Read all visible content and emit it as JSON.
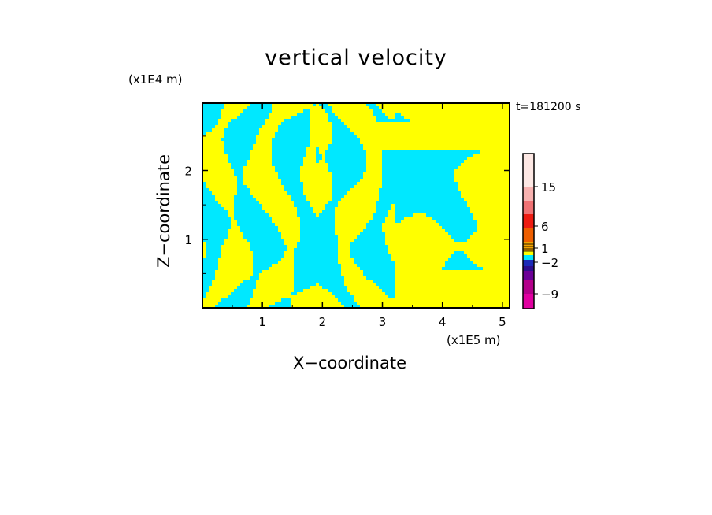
{
  "chart_data": {
    "type": "heatmap",
    "title": "vertical velocity",
    "xlabel": "X−coordinate",
    "ylabel": "Z−coordinate",
    "x_unit": "(x1E5 m)",
    "z_unit": "(x1E4 m)",
    "time_label": "t=181200 s",
    "x_ticks": [
      1,
      2,
      3,
      4,
      5
    ],
    "x_tick_labels": [
      "1",
      "2",
      "3",
      "4",
      "5"
    ],
    "z_ticks": [
      1,
      2
    ],
    "z_tick_labels": [
      "1",
      "2"
    ],
    "xlim": [
      0,
      5.12
    ],
    "zlim": [
      0,
      2.98
    ],
    "dominant_colors": {
      "positive": "#ffff00",
      "negative": "#00e8ff"
    },
    "colorbar": {
      "tick_labels": [
        "15",
        "6",
        "1",
        "−2",
        "−9"
      ],
      "colors_top_to_bottom": [
        "#fde8e4",
        "#f8b2b0",
        "#f07274",
        "#ee1c12",
        "#ee5e00",
        "#f3a300",
        "#ffff00",
        "#00e8ff",
        "#1c2bb8",
        "#2d0d8f",
        "#6b0096",
        "#b3008a",
        "#e000a0"
      ]
    }
  }
}
